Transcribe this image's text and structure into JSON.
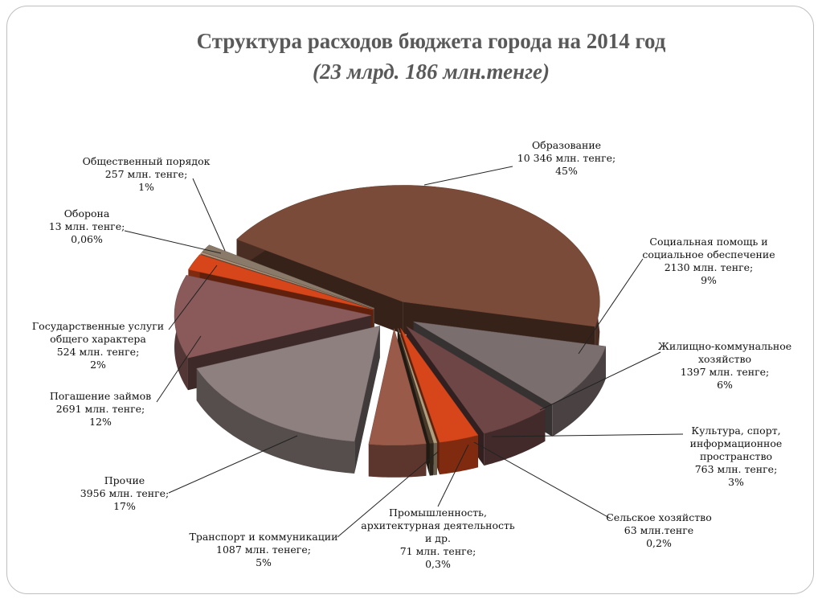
{
  "chart_data": {
    "type": "pie",
    "title": "Структура расходов бюджета города на 2014 год",
    "subtitle": "(23 млрд. 186 млн.тенге)",
    "slices": [
      {
        "key": "edu",
        "lines": [
          "Образование",
          "10 346 млн. тенге;",
          "45%"
        ],
        "value": 10346,
        "percent": 45,
        "color": "#7b4b3a"
      },
      {
        "key": "soc",
        "lines": [
          "Социальная помощь и",
          "социальное обеспечение",
          "2130 млн. тенге;",
          "9%"
        ],
        "value": 2130,
        "percent": 9,
        "color": "#7b6e6e"
      },
      {
        "key": "hous",
        "lines": [
          "Жилищно-коммунальное",
          "хозяйство",
          "1397 млн. тенге;",
          "6%"
        ],
        "value": 1397,
        "percent": 6,
        "color": "#6e4646"
      },
      {
        "key": "cult",
        "lines": [
          "Культура, спорт,",
          "информационное",
          "пространство",
          "763 млн. тенге;",
          "3%"
        ],
        "value": 763,
        "percent": 3,
        "color": "#d6461a"
      },
      {
        "key": "agr",
        "lines": [
          "Сельское хозяйство",
          "63 млн.тенге",
          "0,2%"
        ],
        "value": 63,
        "percent": 0.2,
        "color": "#b0a080"
      },
      {
        "key": "ind",
        "lines": [
          "Промышленность,",
          "архитектурная деятельность",
          "и др.",
          "71 млн. тенге;",
          "0,3%"
        ],
        "value": 71,
        "percent": 0.3,
        "color": "#4a3a2a"
      },
      {
        "key": "trans",
        "lines": [
          "Транспорт и коммуникации",
          "1087 млн. тенеге;",
          "5%"
        ],
        "value": 1087,
        "percent": 5,
        "color": "#9a5a4a"
      },
      {
        "key": "other",
        "lines": [
          "Прочие",
          "3956 млн. тенге;",
          "17%"
        ],
        "value": 3956,
        "percent": 17,
        "color": "#8f8080"
      },
      {
        "key": "debt",
        "lines": [
          "Погашение займов",
          "2691 млн. тенге;",
          "12%"
        ],
        "value": 2691,
        "percent": 12,
        "color": "#8a5a5a"
      },
      {
        "key": "gov",
        "lines": [
          "Государственные услуги",
          "общего характера",
          "524 млн. тенге;",
          "2%"
        ],
        "value": 524,
        "percent": 2,
        "color": "#d6461a"
      },
      {
        "key": "def",
        "lines": [
          "Оборона",
          "13 млн. тенге;",
          "0,06%"
        ],
        "value": 13,
        "percent": 0.06,
        "color": "#b89a80"
      },
      {
        "key": "order",
        "lines": [
          "Общественный порядок",
          "257 млн. тенге;",
          "1%"
        ],
        "value": 257,
        "percent": 1,
        "color": "#8a7a6a"
      }
    ]
  }
}
